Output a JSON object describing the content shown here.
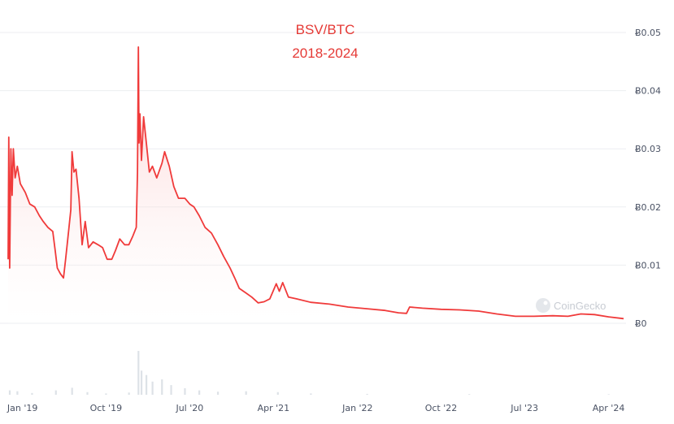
{
  "chart_data": {
    "type": "area",
    "title": "BSV/BTC",
    "subtitle": "2018-2024",
    "watermark": "CoinGecko",
    "line_color": "#f03a3a",
    "fill_color": "#fbd6d6",
    "volume_color": "#dde2e7",
    "grid": true,
    "y_axis_position": "right",
    "ylim": [
      0,
      0.05
    ],
    "y_ticks": [
      "Ƀ0",
      "Ƀ0.01",
      "Ƀ0.02",
      "Ƀ0.03",
      "Ƀ0.04",
      "Ƀ0.05"
    ],
    "y_tick_values": [
      0,
      0.01,
      0.02,
      0.03,
      0.04,
      0.05
    ],
    "x_ticks": [
      "Jan '19",
      "Oct '19",
      "Jul '20",
      "Apr '21",
      "Jan '22",
      "Oct '22",
      "Jul '23",
      "Apr '24"
    ],
    "x_tick_dates": [
      "2019-01-01",
      "2019-10-01",
      "2020-07-01",
      "2021-04-01",
      "2022-01-01",
      "2022-10-01",
      "2023-07-01",
      "2024-04-01"
    ],
    "xlim": [
      "2018-11-15",
      "2024-05-20"
    ],
    "series": [
      {
        "points": [
          [
            "2018-11-15",
            0.011
          ],
          [
            "2018-11-17",
            0.032
          ],
          [
            "2018-11-20",
            0.0095
          ],
          [
            "2018-11-24",
            0.03
          ],
          [
            "2018-11-28",
            0.022
          ],
          [
            "2018-12-02",
            0.03
          ],
          [
            "2018-12-08",
            0.025
          ],
          [
            "2018-12-15",
            0.027
          ],
          [
            "2018-12-25",
            0.024
          ],
          [
            "2019-01-10",
            0.0225
          ],
          [
            "2019-01-25",
            0.0205
          ],
          [
            "2019-02-10",
            0.02
          ],
          [
            "2019-02-25",
            0.0185
          ],
          [
            "2019-03-10",
            0.0175
          ],
          [
            "2019-03-25",
            0.0165
          ],
          [
            "2019-04-10",
            0.0158
          ],
          [
            "2019-04-18",
            0.0125
          ],
          [
            "2019-04-25",
            0.0095
          ],
          [
            "2019-05-05",
            0.0085
          ],
          [
            "2019-05-15",
            0.0078
          ],
          [
            "2019-05-22",
            0.011
          ],
          [
            "2019-06-01",
            0.016
          ],
          [
            "2019-06-08",
            0.0195
          ],
          [
            "2019-06-12",
            0.0295
          ],
          [
            "2019-06-18",
            0.026
          ],
          [
            "2019-06-25",
            0.0265
          ],
          [
            "2019-07-05",
            0.0215
          ],
          [
            "2019-07-15",
            0.0135
          ],
          [
            "2019-07-25",
            0.0175
          ],
          [
            "2019-08-05",
            0.013
          ],
          [
            "2019-08-20",
            0.014
          ],
          [
            "2019-09-05",
            0.0135
          ],
          [
            "2019-09-20",
            0.013
          ],
          [
            "2019-10-05",
            0.011
          ],
          [
            "2019-10-20",
            0.011
          ],
          [
            "2019-11-01",
            0.0125
          ],
          [
            "2019-11-15",
            0.0145
          ],
          [
            "2019-12-01",
            0.0135
          ],
          [
            "2019-12-15",
            0.0135
          ],
          [
            "2019-12-28",
            0.015
          ],
          [
            "2020-01-08",
            0.0165
          ],
          [
            "2020-01-12",
            0.026
          ],
          [
            "2020-01-15",
            0.0475
          ],
          [
            "2020-01-17",
            0.031
          ],
          [
            "2020-01-20",
            0.036
          ],
          [
            "2020-01-25",
            0.028
          ],
          [
            "2020-02-01",
            0.0355
          ],
          [
            "2020-02-10",
            0.031
          ],
          [
            "2020-02-20",
            0.026
          ],
          [
            "2020-03-01",
            0.027
          ],
          [
            "2020-03-15",
            0.025
          ],
          [
            "2020-04-01",
            0.0275
          ],
          [
            "2020-04-10",
            0.0295
          ],
          [
            "2020-04-25",
            0.027
          ],
          [
            "2020-05-10",
            0.0235
          ],
          [
            "2020-05-25",
            0.0215
          ],
          [
            "2020-06-15",
            0.0215
          ],
          [
            "2020-07-01",
            0.0205
          ],
          [
            "2020-07-15",
            0.02
          ],
          [
            "2020-08-01",
            0.0185
          ],
          [
            "2020-08-20",
            0.0165
          ],
          [
            "2020-09-10",
            0.0155
          ],
          [
            "2020-10-01",
            0.0135
          ],
          [
            "2020-10-20",
            0.0115
          ],
          [
            "2020-11-10",
            0.0095
          ],
          [
            "2020-11-25",
            0.0078
          ],
          [
            "2020-12-10",
            0.006
          ],
          [
            "2021-01-01",
            0.0052
          ],
          [
            "2021-01-20",
            0.0045
          ],
          [
            "2021-02-10",
            0.0035
          ],
          [
            "2021-03-01",
            0.0037
          ],
          [
            "2021-03-20",
            0.0042
          ],
          [
            "2021-04-10",
            0.0068
          ],
          [
            "2021-04-20",
            0.0055
          ],
          [
            "2021-05-01",
            0.007
          ],
          [
            "2021-05-20",
            0.0045
          ],
          [
            "2021-06-15",
            0.0042
          ],
          [
            "2021-08-01",
            0.0036
          ],
          [
            "2021-10-01",
            0.0033
          ],
          [
            "2021-12-01",
            0.0028
          ],
          [
            "2022-02-01",
            0.0025
          ],
          [
            "2022-04-01",
            0.0022
          ],
          [
            "2022-05-15",
            0.0018
          ],
          [
            "2022-06-10",
            0.0017
          ],
          [
            "2022-06-20",
            0.0028
          ],
          [
            "2022-08-01",
            0.0026
          ],
          [
            "2022-10-01",
            0.0024
          ],
          [
            "2022-12-01",
            0.0023
          ],
          [
            "2023-02-01",
            0.0021
          ],
          [
            "2023-04-01",
            0.0016
          ],
          [
            "2023-06-01",
            0.0012
          ],
          [
            "2023-08-01",
            0.0012
          ],
          [
            "2023-10-01",
            0.0013
          ],
          [
            "2023-11-20",
            0.0012
          ],
          [
            "2024-01-01",
            0.0016
          ],
          [
            "2024-02-15",
            0.0015
          ],
          [
            "2024-04-01",
            0.0011
          ],
          [
            "2024-05-20",
            0.0008
          ]
        ]
      }
    ],
    "volume": [
      [
        "2018-11-20",
        0.1
      ],
      [
        "2018-12-15",
        0.08
      ],
      [
        "2019-02-01",
        0.04
      ],
      [
        "2019-04-20",
        0.1
      ],
      [
        "2019-06-12",
        0.16
      ],
      [
        "2019-08-01",
        0.06
      ],
      [
        "2019-10-01",
        0.03
      ],
      [
        "2019-12-15",
        0.05
      ],
      [
        "2020-01-15",
        1.0
      ],
      [
        "2020-01-25",
        0.55
      ],
      [
        "2020-02-10",
        0.45
      ],
      [
        "2020-03-01",
        0.3
      ],
      [
        "2020-04-01",
        0.35
      ],
      [
        "2020-05-01",
        0.22
      ],
      [
        "2020-06-15",
        0.15
      ],
      [
        "2020-08-01",
        0.1
      ],
      [
        "2020-10-01",
        0.07
      ],
      [
        "2021-01-01",
        0.08
      ],
      [
        "2021-04-15",
        0.06
      ],
      [
        "2021-08-01",
        0.03
      ],
      [
        "2022-02-01",
        0.02
      ],
      [
        "2023-01-01",
        0.015
      ],
      [
        "2024-04-01",
        0.012
      ]
    ]
  }
}
